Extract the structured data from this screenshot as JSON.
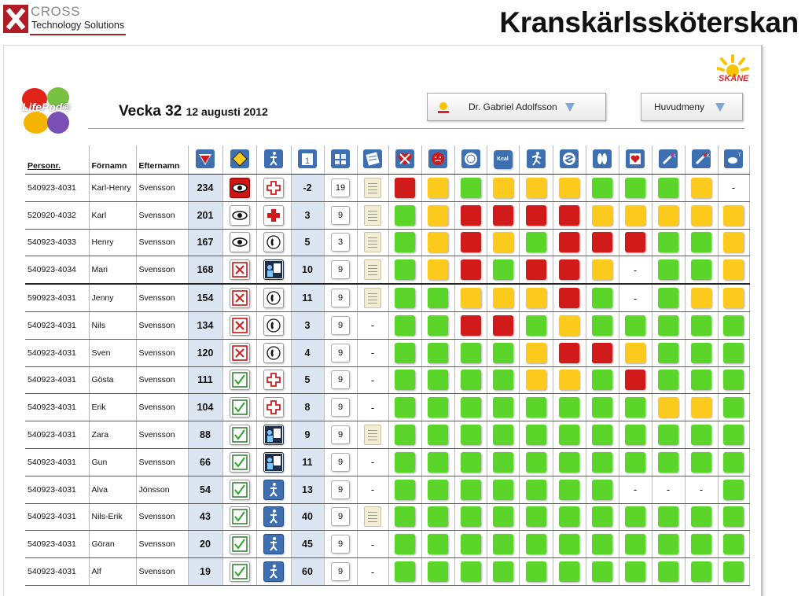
{
  "brand": {
    "line1": "CROSS",
    "line2": "Technology Solutions"
  },
  "slide_title": "Kranskärlssköterskan",
  "app": {
    "logo_text": "LifePod®",
    "week_label": "Vecka 32",
    "week_date": "12 augusti 2012",
    "region_logo_text": "SKÅNE"
  },
  "doctor_dropdown": {
    "label": "Dr. Gabriel Adolfsson"
  },
  "menu_dropdown": {
    "label": "Huvudmeny"
  },
  "columns": {
    "personnr": "Personr.",
    "fornamn": "Förnamn",
    "efternamn": "Efternamn"
  },
  "colors": {
    "green": "#5bd52a",
    "yellow": "#fcca1d",
    "red": "#d11b1b",
    "header_icon_blue": "#3e6fb0",
    "score_bg": "#dce6f2"
  },
  "header_icons": [
    "priority-triangle-icon",
    "diamond-warning-icon",
    "walking-person-icon",
    "calendar-day-icon",
    "puzzle-icon",
    "notebook-icon",
    "heart-cross-icon",
    "face-icon",
    "plate-icon",
    "kcal-icon",
    "running-icon",
    "bowel-icon",
    "feet-icon",
    "heart-chart-icon",
    "syringe-l-icon",
    "syringe-k-icon",
    "pill-t-icon"
  ],
  "header_labels": {
    "kcal": "Kcal"
  },
  "rows": [
    {
      "id": "540923-4031",
      "first": "Karl-Henry",
      "last": "Svensson",
      "score": "234",
      "alert": "eye-red",
      "status": "redcross",
      "days": "-2",
      "wk": "19",
      "note": true,
      "cells": [
        "r",
        "y",
        "g",
        "y",
        "y",
        "y",
        "g",
        "g",
        "g",
        "y",
        "-"
      ]
    },
    {
      "id": "520920-4032",
      "first": "Karl",
      "last": "Svensson",
      "score": "201",
      "alert": "eye",
      "status": "redcross-fill",
      "days": "3",
      "wk": "9",
      "note": true,
      "cells": [
        "g",
        "y",
        "r",
        "r",
        "r",
        "r",
        "y",
        "y",
        "y",
        "y",
        "y"
      ]
    },
    {
      "id": "540923-4033",
      "first": "Henry",
      "last": "Svensson",
      "score": "167",
      "alert": "eye",
      "status": "phone",
      "days": "5",
      "wk": "3",
      "note": true,
      "cells": [
        "g",
        "y",
        "r",
        "y",
        "g",
        "r",
        "r",
        "r",
        "g",
        "g",
        "y"
      ]
    },
    {
      "id": "540923-4034",
      "first": "Mari",
      "last": "Svensson",
      "score": "168",
      "alert": "x",
      "status": "doctor",
      "days": "10",
      "wk": "9",
      "note": true,
      "cells": [
        "g",
        "y",
        "r",
        "g",
        "r",
        "r",
        "y",
        "-",
        "g",
        "g",
        "y"
      ]
    },
    {
      "id": "590923-4031",
      "first": "Jenny",
      "last": "Svensson",
      "score": "154",
      "alert": "x",
      "status": "phone",
      "days": "11",
      "wk": "9",
      "note": true,
      "cells": [
        "g",
        "g",
        "y",
        "y",
        "y",
        "r",
        "g",
        "-",
        "g",
        "y",
        "y"
      ]
    },
    {
      "id": "540923-4031",
      "first": "Nils",
      "last": "Svensson",
      "score": "134",
      "alert": "x",
      "status": "phone",
      "days": "3",
      "wk": "9",
      "note": false,
      "cells": [
        "g",
        "g",
        "r",
        "r",
        "g",
        "y",
        "g",
        "g",
        "g",
        "g",
        "g"
      ]
    },
    {
      "id": "540923-4031",
      "first": "Sven",
      "last": "Svensson",
      "score": "120",
      "alert": "x",
      "status": "phone",
      "days": "4",
      "wk": "9",
      "note": false,
      "cells": [
        "g",
        "g",
        "g",
        "g",
        "y",
        "r",
        "r",
        "y",
        "g",
        "g",
        "g"
      ]
    },
    {
      "id": "540923-4031",
      "first": "Gösta",
      "last": "Svensson",
      "score": "111",
      "alert": "check",
      "status": "redcross",
      "days": "5",
      "wk": "9",
      "note": false,
      "cells": [
        "g",
        "g",
        "g",
        "g",
        "y",
        "y",
        "g",
        "r",
        "g",
        "g",
        "g"
      ]
    },
    {
      "id": "540923-4031",
      "first": "Erik",
      "last": "Svensson",
      "score": "104",
      "alert": "check",
      "status": "redcross",
      "days": "8",
      "wk": "9",
      "note": false,
      "cells": [
        "g",
        "g",
        "g",
        "g",
        "g",
        "g",
        "g",
        "g",
        "y",
        "y",
        "g"
      ]
    },
    {
      "id": "540923-4031",
      "first": "Zara",
      "last": "Svensson",
      "score": "88",
      "alert": "check",
      "status": "doctor",
      "days": "9",
      "wk": "9",
      "note": true,
      "cells": [
        "g",
        "g",
        "g",
        "g",
        "g",
        "g",
        "g",
        "g",
        "g",
        "g",
        "g"
      ]
    },
    {
      "id": "540923-4031",
      "first": "Gun",
      "last": "Svensson",
      "score": "66",
      "alert": "check",
      "status": "doctor",
      "days": "11",
      "wk": "9",
      "note": false,
      "cells": [
        "g",
        "g",
        "g",
        "g",
        "g",
        "g",
        "g",
        "g",
        "g",
        "g",
        "g"
      ]
    },
    {
      "id": "540923-4031",
      "first": "Alva",
      "last": "Jönsson",
      "score": "54",
      "alert": "check",
      "status": "walk",
      "days": "13",
      "wk": "9",
      "note": false,
      "cells": [
        "g",
        "g",
        "g",
        "g",
        "g",
        "g",
        "g",
        "-",
        "-",
        "-",
        "g"
      ]
    },
    {
      "id": "540923-4031",
      "first": "Nils-Erik",
      "last": "Svensson",
      "score": "43",
      "alert": "check",
      "status": "walk",
      "days": "40",
      "wk": "9",
      "note": true,
      "cells": [
        "g",
        "g",
        "g",
        "g",
        "g",
        "g",
        "g",
        "g",
        "g",
        "g",
        "g"
      ]
    },
    {
      "id": "540923-4031",
      "first": "Göran",
      "last": "Svensson",
      "score": "20",
      "alert": "check",
      "status": "walk",
      "days": "45",
      "wk": "9",
      "note": false,
      "cells": [
        "g",
        "g",
        "g",
        "g",
        "g",
        "g",
        "g",
        "g",
        "g",
        "g",
        "g"
      ]
    },
    {
      "id": "540923-4031",
      "first": "Alf",
      "last": "Svensson",
      "score": "19",
      "alert": "check",
      "status": "walk",
      "days": "60",
      "wk": "9",
      "note": false,
      "cells": [
        "g",
        "g",
        "g",
        "g",
        "g",
        "g",
        "g",
        "g",
        "g",
        "g",
        "g"
      ]
    }
  ]
}
